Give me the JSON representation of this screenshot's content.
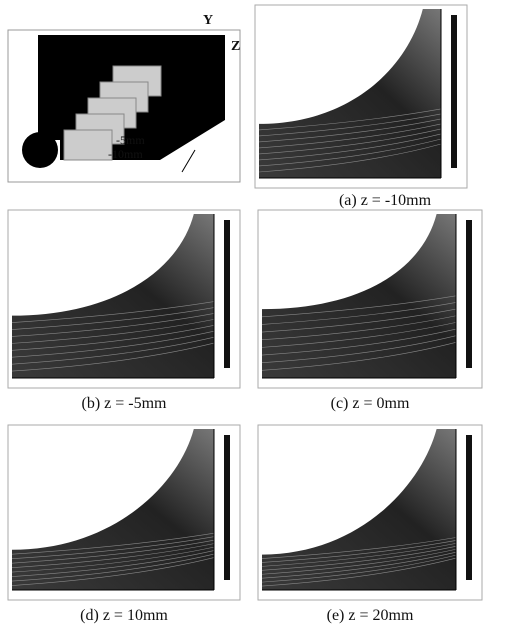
{
  "schematic": {
    "axis_y": "Y",
    "axis_z": "Z",
    "marker_1": "-5mm",
    "marker_2": "-10mm"
  },
  "panels": [
    {
      "caption": "(a) z = -10mm"
    },
    {
      "caption": "(b) z = -5mm"
    },
    {
      "caption": "(c) z = 0mm"
    },
    {
      "caption": "(d) z = 10mm"
    },
    {
      "caption": "(e) z = 20mm"
    }
  ]
}
